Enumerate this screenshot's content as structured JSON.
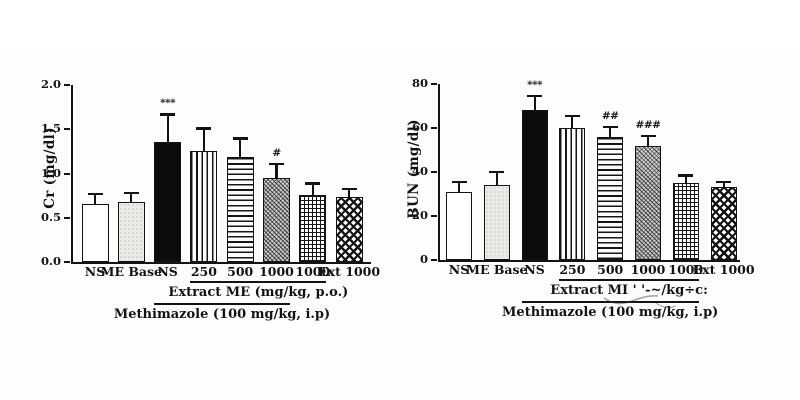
{
  "colors": {
    "ink": "#131313",
    "background": "#ffffff",
    "black_bar": "#0c0c0c",
    "light_bar": "#ebebe8",
    "gray_hatch_bar": "#cfcfcf"
  },
  "chart_data": [
    {
      "type": "bar",
      "title": "",
      "ylabel": "Cr (mg/dl)",
      "xlabel": "",
      "ylim": [
        0,
        2.0
      ],
      "yticks": [
        0,
        0.5,
        1.0,
        1.5,
        2.0
      ],
      "ytick_labels": [
        "0.0",
        "0.5",
        "1.0",
        "1.5",
        "2.0"
      ],
      "categories": [
        "NS",
        "ME Base",
        "NS",
        "250",
        "500",
        "1000",
        "1000",
        "Ext 1000"
      ],
      "values": [
        0.66,
        0.68,
        1.36,
        1.25,
        1.19,
        0.95,
        0.76,
        0.74
      ],
      "errors": [
        0.12,
        0.11,
        0.32,
        0.27,
        0.22,
        0.17,
        0.14,
        0.1
      ],
      "annotations": [
        "",
        "",
        "***",
        "",
        "",
        "#",
        "",
        ""
      ],
      "bar_styles": [
        "white",
        "light-texture",
        "black",
        "vertical-lines",
        "horizontal-lines",
        "diagonal-crosshatch",
        "fine-grid",
        "diamond-checker"
      ],
      "group_lines": [
        {
          "label": "Extract ME (mg/kg, p.o.)",
          "from_bar": 3,
          "to_bar": 6
        },
        {
          "label": "Methimazole (100 mg/kg, i.p)",
          "from_bar": 2,
          "to_bar": 5
        }
      ],
      "grid": false,
      "legend": null
    },
    {
      "type": "bar",
      "title": "",
      "ylabel": "BUN (mg/dl)",
      "xlabel": "",
      "ylim": [
        0,
        80
      ],
      "yticks": [
        0,
        20,
        40,
        60,
        80
      ],
      "ytick_labels": [
        "0",
        "20",
        "40",
        "60",
        "80"
      ],
      "categories": [
        "NS",
        "ME Base",
        "NS",
        "250",
        "500",
        "1000",
        "1000",
        "Ext 1000"
      ],
      "values": [
        31,
        34,
        68,
        60,
        56,
        52,
        35,
        33
      ],
      "errors": [
        5,
        6.5,
        7,
        6,
        5,
        5,
        4,
        3
      ],
      "annotations": [
        "",
        "",
        "***",
        "",
        "##",
        "###",
        "",
        ""
      ],
      "bar_styles": [
        "white",
        "light-texture",
        "black",
        "vertical-lines",
        "horizontal-lines",
        "diagonal-crosshatch",
        "fine-grid",
        "diamond-checker"
      ],
      "group_lines": [
        {
          "label": "Extract MI ' '-~/kg÷c:",
          "from_bar": 3,
          "to_bar": 6
        },
        {
          "label": "Methimazole (100 mg/kg, i.p)",
          "from_bar": 2,
          "to_bar": 6
        }
      ],
      "grid": false,
      "legend": null
    }
  ]
}
